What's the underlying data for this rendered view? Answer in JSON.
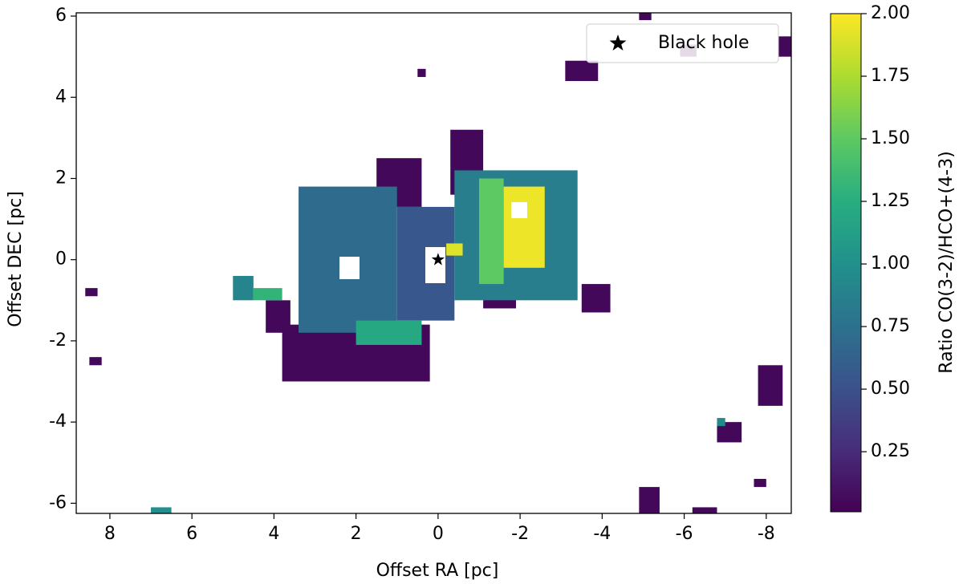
{
  "chart_data": {
    "type": "heatmap",
    "xlabel": "Offset RA [pc]",
    "ylabel": "Offset DEC [pc]",
    "xlim": [
      8.82,
      -8.61
    ],
    "ylim": [
      -6.25,
      6.08
    ],
    "xticks": [
      8,
      6,
      4,
      2,
      0,
      -2,
      -4,
      -6,
      -8
    ],
    "yticks": [
      -6,
      -4,
      -2,
      0,
      2,
      4,
      6
    ],
    "colorbar": {
      "label": "Ratio CO(3-2)/HCO+(4-3)",
      "colormap": "viridis",
      "lim": [
        0.01,
        2.0
      ],
      "ticks": [
        0.25,
        {
          "value": 0.5,
          "label": "0.50"
        },
        0.75,
        {
          "value": 1.0,
          "label": "1.00"
        },
        1.25,
        {
          "value": 1.5,
          "label": "1.50"
        },
        1.75,
        {
          "value": 2.0,
          "label": "2.00"
        }
      ]
    },
    "cells": {
      "x0": [
        1.5,
        -0.3,
        3.8,
        4.2,
        -1.1,
        -3.5,
        -3.1,
        0.5,
        8.6,
        8.5,
        -7.8,
        -6.8,
        -7.7,
        -4.9,
        -6.2,
        -4.9,
        -5.9,
        -8.3,
        3.4,
        1.0,
        -0.4,
        2.0,
        -1.0,
        -1.6,
        -0.2,
        5.0,
        4.5,
        7.0,
        -6.8
      ],
      "x1": [
        0.4,
        -1.1,
        0.2,
        3.6,
        -1.9,
        -4.2,
        -3.9,
        0.3,
        8.3,
        8.2,
        -8.4,
        -7.4,
        -8.0,
        -5.4,
        -6.8,
        -5.2,
        -6.3,
        -8.6,
        1.0,
        -0.4,
        -3.4,
        0.4,
        -1.6,
        -2.6,
        -0.6,
        4.5,
        3.8,
        6.5,
        -7.0
      ],
      "y0": [
        1.3,
        1.6,
        -3.0,
        -1.8,
        -1.2,
        -1.3,
        4.4,
        4.5,
        -0.9,
        -2.6,
        -3.6,
        -4.5,
        -5.6,
        -6.25,
        -6.25,
        5.9,
        5.0,
        5.0,
        -1.8,
        -1.5,
        -1.0,
        -2.1,
        -0.6,
        -0.2,
        0.1,
        -1.0,
        -1.0,
        -6.25,
        -4.1
      ],
      "y1": [
        2.5,
        3.2,
        -1.6,
        -1.0,
        -0.8,
        -0.6,
        4.9,
        4.7,
        -0.7,
        -2.4,
        -2.6,
        -4.0,
        -5.4,
        -5.6,
        -6.1,
        6.08,
        5.3,
        5.5,
        1.8,
        1.3,
        2.2,
        -1.5,
        2.0,
        1.8,
        0.4,
        -0.4,
        -0.7,
        -6.1,
        -3.9
      ],
      "values": [
        0.05,
        0.05,
        0.05,
        0.05,
        0.05,
        0.05,
        0.05,
        0.05,
        0.05,
        0.05,
        0.05,
        0.05,
        0.05,
        0.05,
        0.05,
        0.05,
        0.05,
        0.05,
        0.7,
        0.55,
        0.85,
        1.2,
        1.5,
        1.95,
        1.9,
        0.9,
        1.3,
        1.0,
        0.95
      ]
    },
    "black_hole": {
      "name": "Black hole",
      "x": 0,
      "y": 0
    }
  }
}
